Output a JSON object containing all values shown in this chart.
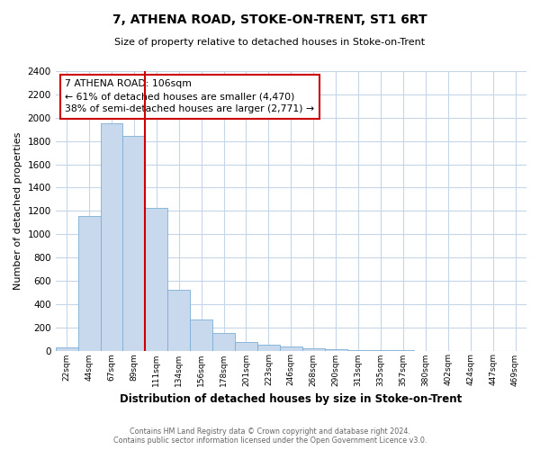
{
  "title": "7, ATHENA ROAD, STOKE-ON-TRENT, ST1 6RT",
  "subtitle": "Size of property relative to detached houses in Stoke-on-Trent",
  "xlabel": "Distribution of detached houses by size in Stoke-on-Trent",
  "ylabel": "Number of detached properties",
  "bin_labels": [
    "22sqm",
    "44sqm",
    "67sqm",
    "89sqm",
    "111sqm",
    "134sqm",
    "156sqm",
    "178sqm",
    "201sqm",
    "223sqm",
    "246sqm",
    "268sqm",
    "290sqm",
    "313sqm",
    "335sqm",
    "357sqm",
    "380sqm",
    "402sqm",
    "424sqm",
    "447sqm",
    "469sqm"
  ],
  "bar_heights": [
    25,
    1155,
    1950,
    1840,
    1225,
    520,
    265,
    148,
    75,
    48,
    38,
    18,
    8,
    3,
    1,
    1,
    0,
    0,
    0,
    0,
    0
  ],
  "bar_color": "#c8d9ee",
  "bar_edge_color": "#7bafd4",
  "vline_index": 4,
  "vline_color": "#cc0000",
  "annotation_title": "7 ATHENA ROAD: 106sqm",
  "annotation_line1": "← 61% of detached houses are smaller (4,470)",
  "annotation_line2": "38% of semi-detached houses are larger (2,771) →",
  "annotation_box_color": "#cc0000",
  "annotation_box_fill": "#ffffff",
  "ylim": [
    0,
    2400
  ],
  "yticks": [
    0,
    200,
    400,
    600,
    800,
    1000,
    1200,
    1400,
    1600,
    1800,
    2000,
    2200,
    2400
  ],
  "footnote1": "Contains HM Land Registry data © Crown copyright and database right 2024.",
  "footnote2": "Contains public sector information licensed under the Open Government Licence v3.0.",
  "bg_color": "#ffffff",
  "grid_color": "#c8d4e8"
}
